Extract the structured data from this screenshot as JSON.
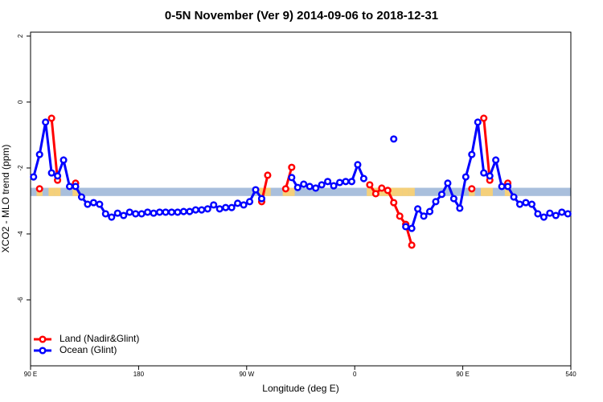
{
  "chart_data": {
    "type": "line",
    "title": "0-5N November (Ver 9)   2014-09-06 to 2018-12-31",
    "x_label": "Longitude (deg E)",
    "y_label": "XCO2 - MLO trend (ppm)",
    "xlim": [
      90,
      540
    ],
    "ylim": [
      -8,
      2.12
    ],
    "xticks": [
      {
        "value": 90,
        "label": "90 E"
      },
      180,
      {
        "value": 270,
        "label": "90 W"
      },
      {
        "value": 360,
        "label": "0"
      },
      {
        "value": 450,
        "label": "90 E"
      },
      540
    ],
    "yticks": [
      2,
      0,
      -2,
      -4,
      -6
    ],
    "band": [
      -2.85,
      -2.6
    ],
    "band_color": "#a9bfdc",
    "band_land_color": "#f5d07a",
    "legend": "bottom-left",
    "x": [
      92.5,
      97.5,
      102.5,
      107.5,
      112.5,
      117.5,
      122.5,
      127.5,
      132.5,
      137.5,
      142.5,
      147.5,
      152.5,
      157.5,
      162.5,
      167.5,
      172.5,
      177.5,
      182.5,
      187.5,
      192.5,
      197.5,
      202.5,
      207.5,
      212.5,
      217.5,
      222.5,
      227.5,
      232.5,
      237.5,
      242.5,
      247.5,
      252.5,
      257.5,
      262.5,
      267.5,
      272.5,
      277.5,
      282.5,
      287.5,
      292.5,
      297.5,
      302.5,
      307.5,
      312.5,
      317.5,
      322.5,
      327.5,
      332.5,
      337.5,
      342.5,
      347.5,
      352.5,
      357.5,
      362.5,
      367.5,
      372.5,
      377.5,
      382.5,
      387.5,
      392.5,
      397.5,
      402.5,
      407.5,
      412.5,
      417.5,
      422.5,
      427.5,
      432.5,
      437.5,
      442.5,
      447.5,
      452.5,
      457.5,
      462.5,
      467.5,
      472.5,
      477.5,
      482.5,
      487.5,
      492.5,
      497.5,
      502.5,
      507.5,
      512.5,
      517.5,
      522.5,
      527.5,
      532.5,
      537.5
    ],
    "series": [
      {
        "name": "Land (Nadir&Glint)",
        "color": "#ff0000",
        "values": [
          null,
          -2.63,
          null,
          -0.49,
          -2.37,
          null,
          null,
          -2.46,
          null,
          null,
          null,
          null,
          null,
          null,
          null,
          null,
          null,
          null,
          null,
          null,
          null,
          null,
          null,
          null,
          null,
          null,
          null,
          null,
          null,
          null,
          null,
          null,
          null,
          null,
          null,
          null,
          null,
          null,
          -3.02,
          -2.22,
          null,
          null,
          -2.63,
          -1.98,
          null,
          null,
          null,
          null,
          null,
          null,
          null,
          null,
          null,
          null,
          null,
          null,
          -2.51,
          -2.78,
          -2.61,
          -2.68,
          -3.05,
          -3.46,
          -3.71,
          -4.34,
          null,
          null,
          null,
          null,
          null,
          null,
          null,
          null,
          null,
          -2.63,
          null,
          -0.49,
          -2.37,
          null,
          null,
          -2.46,
          null,
          null,
          null,
          null,
          null,
          null,
          null,
          null,
          null,
          null
        ]
      },
      {
        "name": "Ocean (Glint)",
        "color": "#0000ff",
        "values": [
          -2.27,
          -1.59,
          -0.61,
          -2.15,
          -2.24,
          -1.76,
          -2.56,
          -2.56,
          -2.88,
          -3.1,
          -3.05,
          -3.1,
          -3.39,
          -3.49,
          -3.37,
          -3.44,
          -3.34,
          -3.39,
          -3.39,
          -3.34,
          -3.37,
          -3.34,
          -3.34,
          -3.34,
          -3.34,
          -3.32,
          -3.32,
          -3.27,
          -3.27,
          -3.24,
          -3.12,
          -3.24,
          -3.2,
          -3.2,
          -3.07,
          -3.12,
          -3.02,
          -2.66,
          -2.93,
          null,
          null,
          null,
          null,
          -2.29,
          -2.59,
          -2.49,
          -2.56,
          -2.61,
          -2.51,
          -2.41,
          -2.54,
          -2.44,
          -2.41,
          -2.41,
          -1.9,
          -2.32,
          null,
          null,
          null,
          null,
          -1.12,
          null,
          -3.78,
          -3.83,
          -3.24,
          -3.46,
          -3.32,
          -3.02,
          -2.8,
          -2.46,
          -2.93,
          -3.22,
          -2.27,
          -1.59,
          -0.61,
          -2.15,
          -2.24,
          -1.76,
          -2.56,
          -2.56,
          -2.88,
          -3.1,
          -3.05,
          -3.1,
          -3.39,
          -3.49,
          -3.37,
          -3.44,
          -3.34,
          -3.39
        ]
      }
    ]
  }
}
